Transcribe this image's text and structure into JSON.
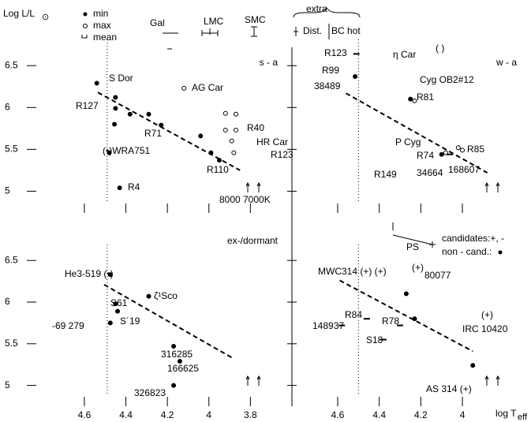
{
  "y_label": "Log L/L",
  "y_label_sub": "⊙",
  "x_label": "log T",
  "x_label_sub": "eff",
  "legend": {
    "min": "min",
    "max": "max",
    "mean": "mean",
    "gal": "Gal",
    "lmc": "LMC",
    "smc": "SMC",
    "extra": "extra",
    "dist": "Dist.",
    "bc": "BC hot"
  },
  "chart_data": [
    {
      "type": "scatter",
      "label": "s - a",
      "xlim": [
        4.9,
        3.6
      ],
      "ylim": [
        4.74,
        7.19
      ],
      "xticks": [
        4.6,
        4.4,
        4.2,
        4,
        3.8
      ],
      "yticks": [
        5,
        5.5,
        6,
        6.5
      ],
      "dotted_x": 4.49,
      "dashed": {
        "x": [
          4.535,
          3.85
        ],
        "y": [
          6.18,
          5.25
        ]
      },
      "min": {
        "x": [
          4.54,
          4.45,
          4.45,
          4.455,
          4.38,
          4.29,
          4.23,
          4.04,
          3.99,
          3.95,
          4.43,
          4.48
        ],
        "y": [
          6.29,
          6.12,
          5.99,
          5.8,
          5.92,
          5.92,
          5.79,
          5.66,
          5.46,
          5.37,
          5.04,
          5.46
        ]
      },
      "max": {
        "x": [
          4.12,
          3.92,
          3.87,
          3.92,
          3.87,
          3.89,
          3.88
        ],
        "y": [
          6.23,
          5.93,
          5.92,
          5.73,
          5.73,
          5.6,
          5.46
        ]
      },
      "mean": {
        "x": [],
        "y": []
      },
      "annotations": [
        "S Dor",
        "AG Car",
        "R127",
        "R71",
        "R40",
        "HR Car",
        "(•)WRA751",
        "R123",
        "R110",
        "R4",
        "8000",
        "7000K"
      ]
    },
    {
      "type": "scatter",
      "label": "w - a",
      "xlim": [
        4.82,
        3.67
      ],
      "ylim": [
        4.74,
        7.19
      ],
      "xticks": [
        4.6,
        4.4,
        4.2,
        4
      ],
      "yticks": [
        5,
        5.5,
        6,
        6.5
      ],
      "dotted_x": 4.5,
      "dashed": {
        "x": [
          4.56,
          3.88
        ],
        "y": [
          6.17,
          5.22
        ]
      },
      "min": {
        "x": [
          4.516,
          4.25,
          4.1
        ],
        "y": [
          6.37,
          6.1,
          5.44
        ]
      },
      "max": {
        "x": [
          4.23,
          4.08,
          4.02,
          4.0
        ],
        "y": [
          6.08,
          5.46,
          5.52,
          5.49
        ]
      },
      "mean": {
        "x": [
          4.51,
          4.06
        ],
        "y": [
          6.64,
          5.44
        ]
      },
      "annotations": [
        "R123",
        "η Car",
        "( )",
        "Cyg OB2#12",
        "R99",
        "38489",
        "R81",
        "P Cyg",
        "R74",
        "R85",
        "R149",
        "34664",
        "168607"
      ]
    },
    {
      "type": "scatter",
      "label": "ex-/dormant",
      "xlim": [
        4.9,
        3.6
      ],
      "ylim": [
        4.75,
        7.07
      ],
      "xticks": [
        4.6,
        4.4,
        4.2,
        4,
        3.8
      ],
      "yticks": [
        5,
        5.5,
        6,
        6.5
      ],
      "dotted_x": 4.49,
      "dashed": {
        "x": [
          4.505,
          3.88
        ],
        "y": [
          6.21,
          5.32
        ]
      },
      "min": {
        "x": [
          4.475,
          4.29,
          4.45,
          4.44,
          4.475,
          4.17,
          4.14,
          4.17
        ],
        "y": [
          6.33,
          6.07,
          5.98,
          5.89,
          5.75,
          5.47,
          5.29,
          5.0
        ]
      },
      "max": {
        "x": [],
        "y": []
      },
      "mean": {
        "x": [],
        "y": []
      },
      "annotations": [
        "He3-519 (•)",
        "ζ¹Sco",
        "S61",
        "S´19",
        "-69 279",
        "316285",
        "166625",
        "326823"
      ]
    },
    {
      "type": "scatter",
      "label": "",
      "xlim": [
        4.82,
        3.67
      ],
      "ylim": [
        4.75,
        7.07
      ],
      "xticks": [
        4.6,
        4.4,
        4.2,
        4
      ],
      "yticks": [
        5,
        5.5,
        6,
        6.5
      ],
      "dotted_x": 4.5,
      "dashed": {
        "x": [
          4.59,
          3.95
        ],
        "y": [
          6.26,
          5.41
        ]
      },
      "min": {
        "x": [
          4.27,
          4.23,
          3.95
        ],
        "y": [
          6.1,
          5.8,
          5.24
        ]
      },
      "max": {
        "x": [],
        "y": []
      },
      "mean": {
        "x": [
          4.46,
          4.58,
          4.3,
          4.38
        ],
        "y": [
          5.8,
          5.72,
          5.72,
          5.55
        ]
      },
      "annotations": [
        "MWC314 (+) (+)",
        "(+)",
        "80077",
        "R84",
        "148937",
        "R78",
        "S18",
        "(+)",
        "IRC 10420",
        "AS 314 (+)",
        "PS",
        "candidates:+, -",
        "non - cand.:"
      ]
    }
  ]
}
